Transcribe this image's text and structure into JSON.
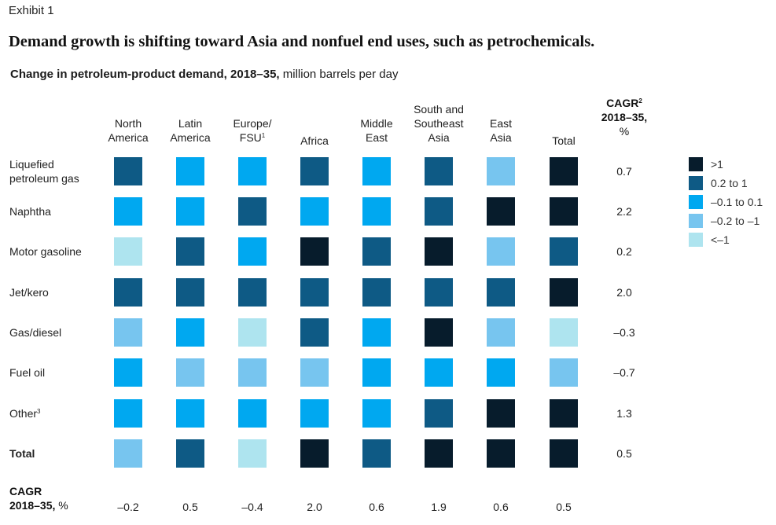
{
  "exhibit_label": "Exhibit 1",
  "title": "Demand growth is shifting toward Asia and nonfuel end uses, such as petrochemicals.",
  "subtitle_bold": "Change in petroleum-product demand, 2018–35,",
  "subtitle_rest": " million barrels per day",
  "cagr_column_header": {
    "line1": "CAGR",
    "sup": "2",
    "line2": "2018–35,",
    "line3": "%"
  },
  "bottom_row_header": {
    "line1": "CAGR",
    "line2_bold": "2018–35,",
    "line2_rest": " %"
  },
  "chart_data": {
    "type": "heatmap",
    "title": "Change in petroleum-product demand, 2018–35, million barrels per day",
    "columns": [
      {
        "lines": [
          "North",
          "America"
        ],
        "sup": ""
      },
      {
        "lines": [
          "Latin",
          "America"
        ],
        "sup": ""
      },
      {
        "lines": [
          "Europe/",
          "FSU"
        ],
        "sup": "1"
      },
      {
        "lines": [
          "Africa"
        ],
        "sup": ""
      },
      {
        "lines": [
          "Middle",
          "East"
        ],
        "sup": ""
      },
      {
        "lines": [
          "South and",
          "Southeast",
          "Asia"
        ],
        "sup": ""
      },
      {
        "lines": [
          "East",
          "Asia"
        ],
        "sup": ""
      },
      {
        "lines": [
          "Total"
        ],
        "sup": ""
      }
    ],
    "rows": [
      {
        "lines": [
          "Liquefied",
          "petroleum gas"
        ],
        "sup": "",
        "bold": false,
        "cagr": "0.7"
      },
      {
        "lines": [
          "Naphtha"
        ],
        "sup": "",
        "bold": false,
        "cagr": "2.2"
      },
      {
        "lines": [
          "Motor gasoline"
        ],
        "sup": "",
        "bold": false,
        "cagr": "0.2"
      },
      {
        "lines": [
          "Jet/kero"
        ],
        "sup": "",
        "bold": false,
        "cagr": "2.0"
      },
      {
        "lines": [
          "Gas/diesel"
        ],
        "sup": "",
        "bold": false,
        "cagr": "–0.3"
      },
      {
        "lines": [
          "Fuel oil"
        ],
        "sup": "",
        "bold": false,
        "cagr": "–0.7"
      },
      {
        "lines": [
          "Other"
        ],
        "sup": "3",
        "bold": false,
        "cagr": "1.3"
      },
      {
        "lines": [
          "Total"
        ],
        "sup": "",
        "bold": true,
        "cagr": "0.5"
      }
    ],
    "column_cagr": [
      "–0.2",
      "0.5",
      "–0.4",
      "2.0",
      "0.6",
      "1.9",
      "0.6",
      "0.5"
    ],
    "legend": [
      {
        "label": ">1",
        "color": "#071c2c"
      },
      {
        "label": "0.2 to 1",
        "color": "#0e5a85"
      },
      {
        "label": "–0.1 to 0.1",
        "color": "#00a8f0"
      },
      {
        "label": "–0.2 to –1",
        "color": "#77c5ef"
      },
      {
        "label": "<–1",
        "color": "#aee4ef"
      }
    ],
    "legend_position": "right",
    "values_legend_index": [
      [
        1,
        2,
        2,
        1,
        2,
        1,
        3,
        0
      ],
      [
        2,
        2,
        1,
        2,
        2,
        1,
        0,
        0
      ],
      [
        4,
        1,
        2,
        0,
        1,
        0,
        3,
        1
      ],
      [
        1,
        1,
        1,
        1,
        1,
        1,
        1,
        0
      ],
      [
        3,
        2,
        4,
        1,
        2,
        0,
        3,
        4
      ],
      [
        2,
        3,
        3,
        3,
        2,
        2,
        2,
        3
      ],
      [
        2,
        2,
        2,
        2,
        2,
        1,
        0,
        0
      ],
      [
        3,
        1,
        4,
        0,
        1,
        0,
        0,
        0
      ]
    ]
  }
}
